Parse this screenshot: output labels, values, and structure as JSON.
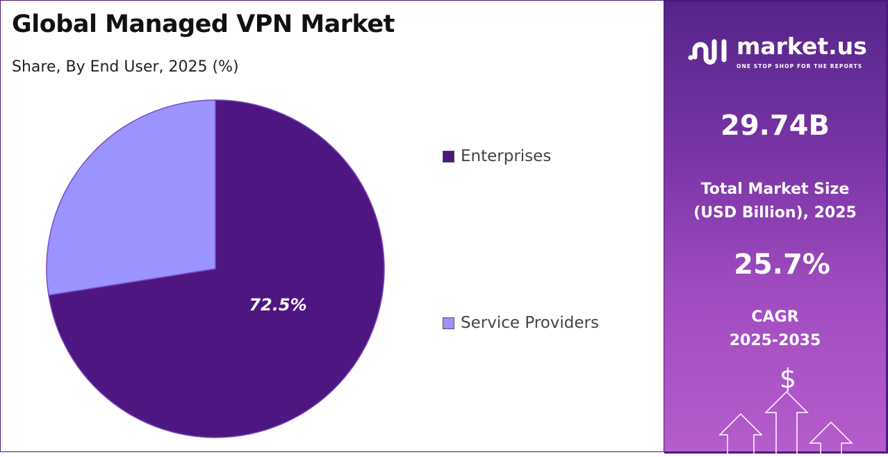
{
  "chart_data": {
    "type": "pie",
    "title": "Global Managed VPN Market",
    "subtitle": "Share, By End User, 2025 (%)",
    "categories": [
      "Enterprises",
      "Service Providers"
    ],
    "values": [
      72.5,
      27.5
    ],
    "data_labels": [
      "72.5%",
      ""
    ],
    "colors": [
      "#4e1680",
      "#9b93ff"
    ],
    "legend_placement": "right"
  },
  "sidebar": {
    "logo_name": "market.us",
    "logo_tagline": "ONE STOP SHOP FOR THE REPORTS",
    "market_size": "29.74B",
    "market_size_label_1": "Total Market Size",
    "market_size_label_2": "(USD Billion), 2025",
    "cagr": "25.7%",
    "cagr_label_1": "CAGR",
    "cagr_label_2": "2025-2035",
    "icon": "dollar-arrows-icon"
  }
}
